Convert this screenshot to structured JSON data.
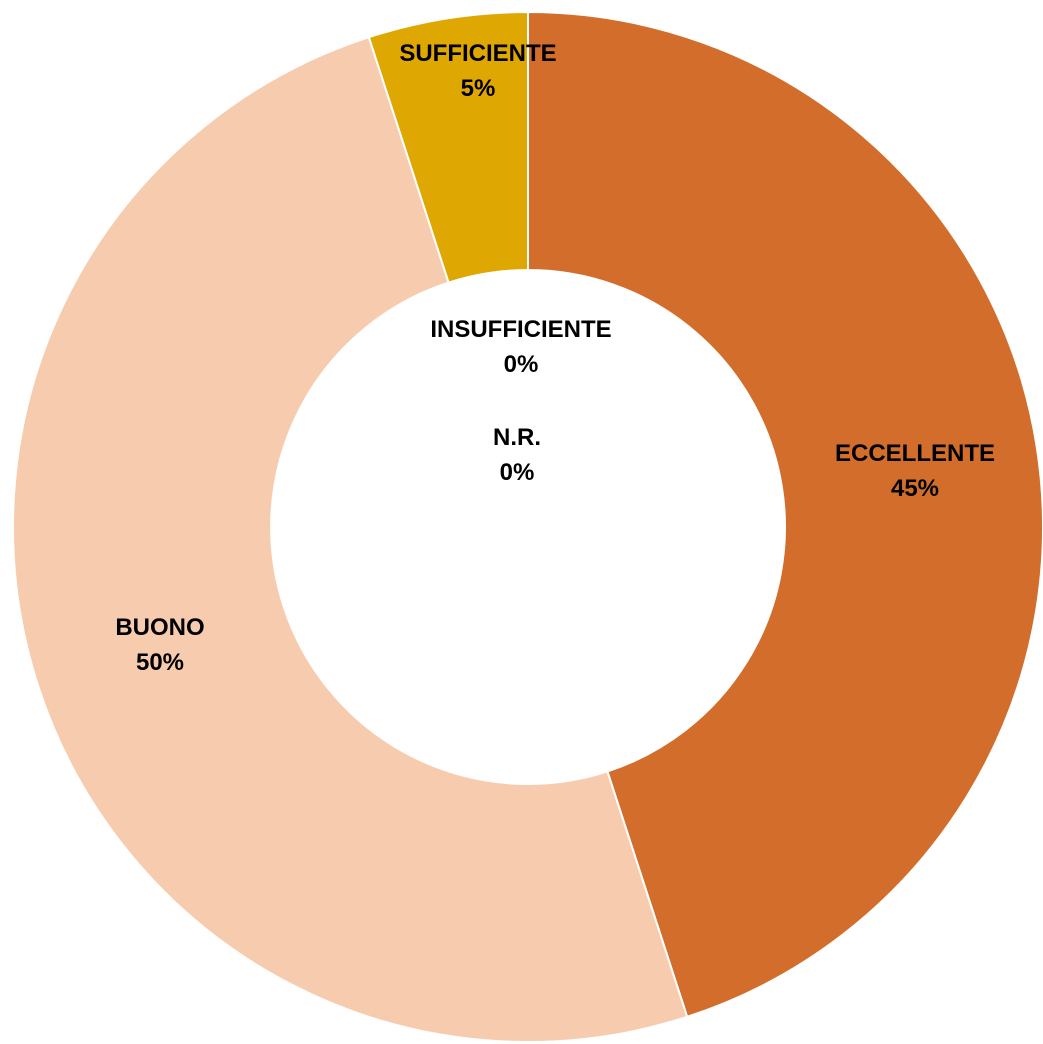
{
  "chart_data": {
    "type": "pie",
    "variant": "donut",
    "start": "top",
    "direction": "clockwise",
    "title": "",
    "legend": "none",
    "slices": [
      {
        "label": "ECCELLENTE",
        "value": 45,
        "display": "45%",
        "color": "#D26D2C"
      },
      {
        "label": "BUONO",
        "value": 50,
        "display": "50%",
        "color": "#F7CBAE"
      },
      {
        "label": "SUFFICIENTE",
        "value": 5,
        "display": "5%",
        "color": "#DFA702"
      },
      {
        "label": "INSUFFICIENTE",
        "value": 0,
        "display": "0%",
        "color": "#A5A5A5"
      },
      {
        "label": "N.R.",
        "value": 0,
        "display": "0%",
        "color": "#7F7F7F"
      }
    ]
  }
}
